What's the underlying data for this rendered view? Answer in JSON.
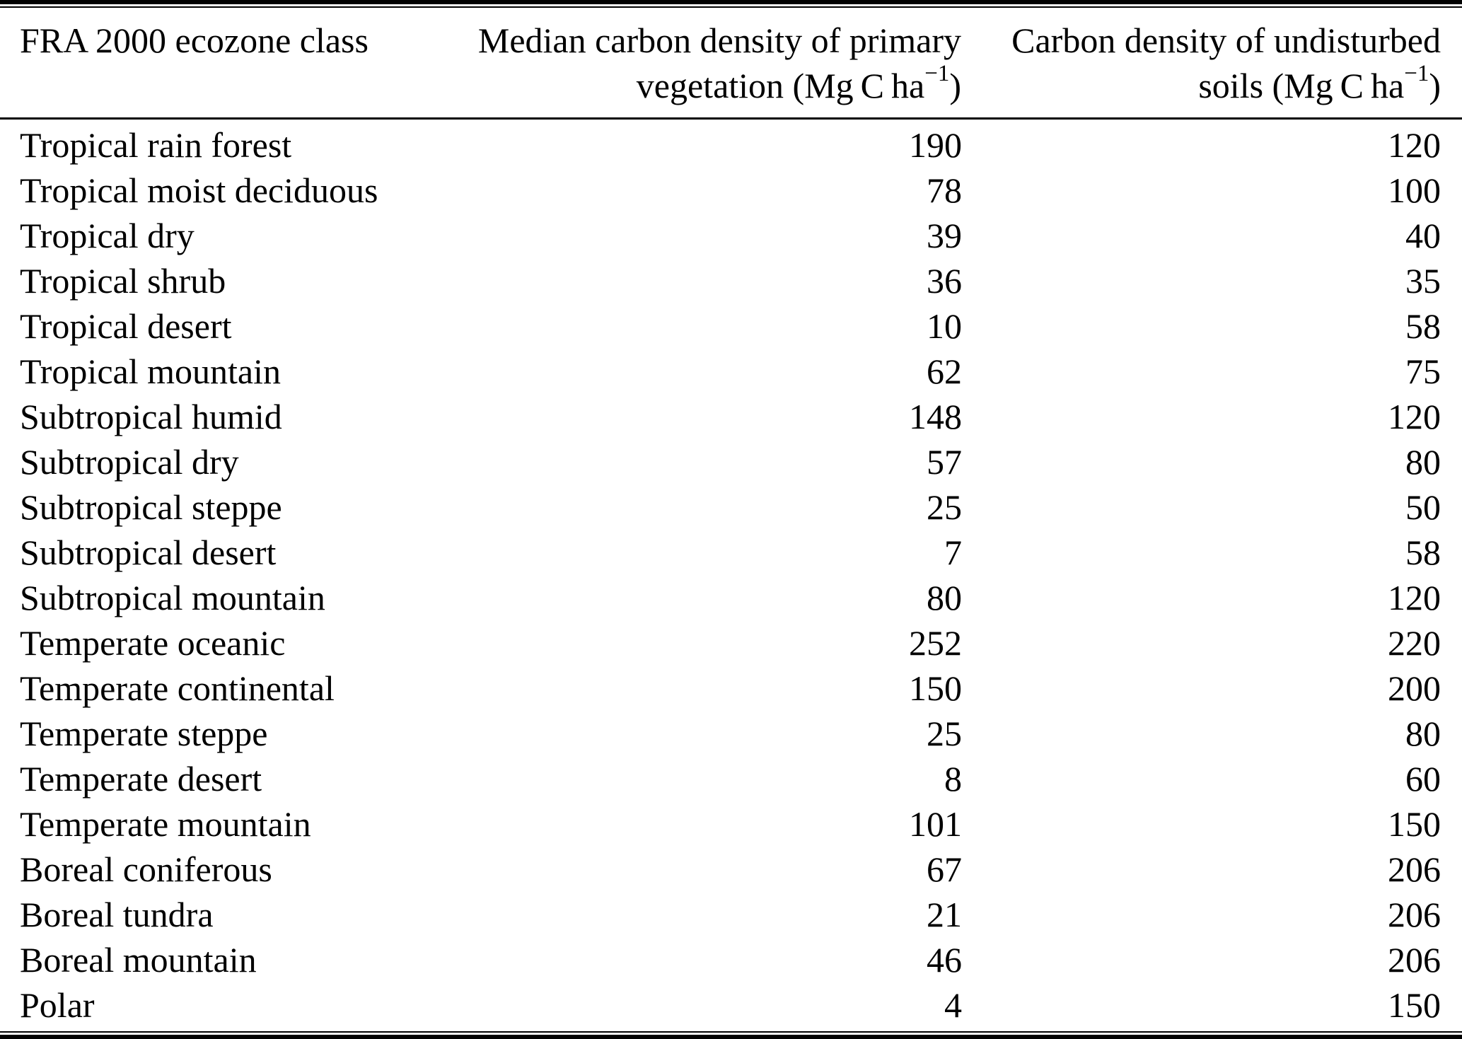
{
  "table": {
    "header": {
      "col1": "FRA 2000 ecozone class",
      "col2": {
        "line1": "Median carbon density of primary",
        "line2_prefix": "vegetation (Mg C ha",
        "sup": "−1",
        "close": ")"
      },
      "col3": {
        "line1": "Carbon density of undisturbed",
        "line2_prefix": "soils (Mg C ha",
        "sup": "−1",
        "close": ")"
      }
    },
    "rows": [
      {
        "ecozone": "Tropical rain forest",
        "vegetation": "190",
        "soils": "120"
      },
      {
        "ecozone": "Tropical moist deciduous",
        "vegetation": "78",
        "soils": "100"
      },
      {
        "ecozone": "Tropical dry",
        "vegetation": "39",
        "soils": "40"
      },
      {
        "ecozone": "Tropical shrub",
        "vegetation": "36",
        "soils": "35"
      },
      {
        "ecozone": "Tropical desert",
        "vegetation": "10",
        "soils": "58"
      },
      {
        "ecozone": "Tropical mountain",
        "vegetation": "62",
        "soils": "75"
      },
      {
        "ecozone": "Subtropical humid",
        "vegetation": "148",
        "soils": "120"
      },
      {
        "ecozone": "Subtropical dry",
        "vegetation": "57",
        "soils": "80"
      },
      {
        "ecozone": "Subtropical steppe",
        "vegetation": "25",
        "soils": "50"
      },
      {
        "ecozone": "Subtropical desert",
        "vegetation": "7",
        "soils": "58"
      },
      {
        "ecozone": "Subtropical mountain",
        "vegetation": "80",
        "soils": "120"
      },
      {
        "ecozone": "Temperate oceanic",
        "vegetation": "252",
        "soils": "220"
      },
      {
        "ecozone": "Temperate continental",
        "vegetation": "150",
        "soils": "200"
      },
      {
        "ecozone": "Temperate steppe",
        "vegetation": "25",
        "soils": "80"
      },
      {
        "ecozone": "Temperate desert",
        "vegetation": "8",
        "soils": "60"
      },
      {
        "ecozone": "Temperate mountain",
        "vegetation": "101",
        "soils": "150"
      },
      {
        "ecozone": "Boreal coniferous",
        "vegetation": "67",
        "soils": "206"
      },
      {
        "ecozone": "Boreal tundra",
        "vegetation": "21",
        "soils": "206"
      },
      {
        "ecozone": "Boreal mountain",
        "vegetation": "46",
        "soils": "206"
      },
      {
        "ecozone": "Polar",
        "vegetation": "4",
        "soils": "150"
      }
    ]
  },
  "chart_data": {
    "type": "table",
    "title": "",
    "columns": [
      "FRA 2000 ecozone class",
      "Median carbon density of primary vegetation (Mg C ha−1)",
      "Carbon density of undisturbed soils (Mg C ha−1)"
    ],
    "categories": [
      "Tropical rain forest",
      "Tropical moist deciduous",
      "Tropical dry",
      "Tropical shrub",
      "Tropical desert",
      "Tropical mountain",
      "Subtropical humid",
      "Subtropical dry",
      "Subtropical steppe",
      "Subtropical desert",
      "Subtropical mountain",
      "Temperate oceanic",
      "Temperate continental",
      "Temperate steppe",
      "Temperate desert",
      "Temperate mountain",
      "Boreal coniferous",
      "Boreal tundra",
      "Boreal mountain",
      "Polar"
    ],
    "series": [
      {
        "name": "Median carbon density of primary vegetation (Mg C ha−1)",
        "values": [
          190,
          78,
          39,
          36,
          10,
          62,
          148,
          57,
          25,
          7,
          80,
          252,
          150,
          25,
          8,
          101,
          67,
          21,
          46,
          4
        ]
      },
      {
        "name": "Carbon density of undisturbed soils (Mg C ha−1)",
        "values": [
          120,
          100,
          40,
          35,
          58,
          75,
          120,
          80,
          50,
          58,
          120,
          220,
          200,
          80,
          60,
          150,
          206,
          206,
          206,
          150
        ]
      }
    ]
  }
}
